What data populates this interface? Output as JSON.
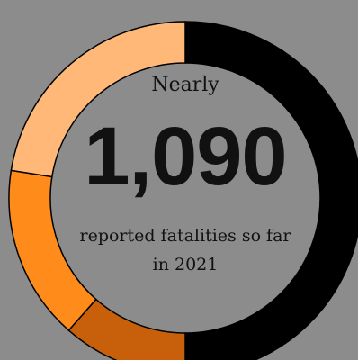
{
  "chart_data": {
    "type": "pie",
    "style": "donut",
    "center_text": {
      "prefix": "Nearly",
      "value": "1,090",
      "caption_line1": "reported fatalities so far",
      "caption_line2": "in 2021"
    },
    "slices": [
      {
        "value": 0.5,
        "color": "#000000"
      },
      {
        "value": 0.115,
        "color": "#c85f0a"
      },
      {
        "value": 0.16,
        "color": "#ff8c1a"
      },
      {
        "value": 0.225,
        "color": "#ffb877"
      }
    ],
    "background_color": "#8c8c8c"
  }
}
